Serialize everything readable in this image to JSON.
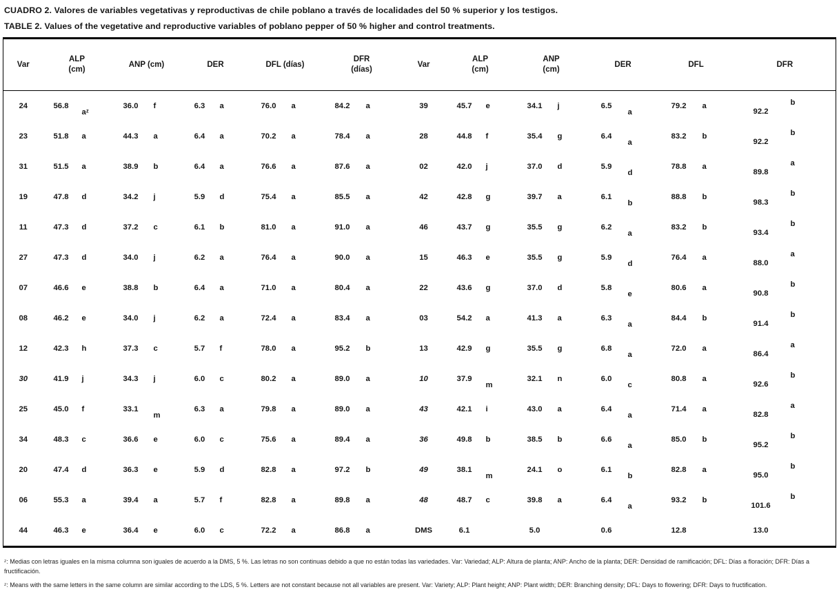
{
  "titles": {
    "es": "CUADRO 2. Valores de variables vegetativas y reproductivas de chile poblano a través de localidades del 50 % superior y los testigos.",
    "en": "TABLE 2. Values of the vegetative and reproductive variables of poblano pepper of 50 % higher and control treatments."
  },
  "table": {
    "headers_left": [
      {
        "l1": "Var"
      },
      {
        "l1": "ALP",
        "l2": "(cm)"
      },
      {
        "l1": "ANP (cm)"
      },
      {
        "l1": "DER"
      },
      {
        "l1": "DFL (días)"
      },
      {
        "l1": "DFR",
        "l2": "(días)"
      }
    ],
    "headers_right": [
      {
        "l1": "Var"
      },
      {
        "l1": "ALP",
        "l2": "(cm)"
      },
      {
        "l1": "ANP",
        "l2": "(cm)"
      },
      {
        "l1": "DER"
      },
      {
        "l1": "DFL"
      },
      {
        "l1": "DFR"
      }
    ],
    "rows": [
      {
        "left": [
          "24",
          "56.8",
          "aᶻ",
          "36.0",
          "f",
          "6.3",
          "a",
          "76.0",
          "a",
          "84.2",
          "a"
        ],
        "left_italic": false,
        "right": [
          "39",
          "45.7",
          "e",
          "34.1",
          "j",
          "6.5",
          "a",
          "79.2",
          "a",
          "92.2",
          "b"
        ],
        "right_italic": false
      },
      {
        "left": [
          "23",
          "51.8",
          "a",
          "44.3",
          "a",
          "6.4",
          "a",
          "70.2",
          "a",
          "78.4",
          "a"
        ],
        "left_italic": false,
        "right": [
          "28",
          "44.8",
          "f",
          "35.4",
          "g",
          "6.4",
          "a",
          "83.2",
          "b",
          "92.2",
          "b"
        ],
        "right_italic": false
      },
      {
        "left": [
          "31",
          "51.5",
          "a",
          "38.9",
          "b",
          "6.4",
          "a",
          "76.6",
          "a",
          "87.6",
          "a"
        ],
        "left_italic": false,
        "right": [
          "02",
          "42.0",
          "j",
          "37.0",
          "d",
          "5.9",
          "d",
          "78.8",
          "a",
          "89.8",
          "a"
        ],
        "right_italic": false
      },
      {
        "left": [
          "19",
          "47.8",
          "d",
          "34.2",
          "j",
          "5.9",
          "d",
          "75.4",
          "a",
          "85.5",
          "a"
        ],
        "left_italic": false,
        "right": [
          "42",
          "42.8",
          "g",
          "39.7",
          "a",
          "6.1",
          "b",
          "88.8",
          "b",
          "98.3",
          "b"
        ],
        "right_italic": false
      },
      {
        "left": [
          "11",
          "47.3",
          "d",
          "37.2",
          "c",
          "6.1",
          "b",
          "81.0",
          "a",
          "91.0",
          "a"
        ],
        "left_italic": false,
        "right": [
          "46",
          "43.7",
          "g",
          "35.5",
          "g",
          "6.2",
          "a",
          "83.2",
          "b",
          "93.4",
          "b"
        ],
        "right_italic": false
      },
      {
        "left": [
          "27",
          "47.3",
          "d",
          "34.0",
          "j",
          "6.2",
          "a",
          "76.4",
          "a",
          "90.0",
          "a"
        ],
        "left_italic": false,
        "right": [
          "15",
          "46.3",
          "e",
          "35.5",
          "g",
          "5.9",
          "d",
          "76.4",
          "a",
          "88.0",
          "a"
        ],
        "right_italic": false
      },
      {
        "left": [
          "07",
          "46.6",
          "e",
          "38.8",
          "b",
          "6.4",
          "a",
          "71.0",
          "a",
          "80.4",
          "a"
        ],
        "left_italic": false,
        "right": [
          "22",
          "43.6",
          "g",
          "37.0",
          "d",
          "5.8",
          "e",
          "80.6",
          "a",
          "90.8",
          "b"
        ],
        "right_italic": false
      },
      {
        "left": [
          "08",
          "46.2",
          "e",
          "34.0",
          "j",
          "6.2",
          "a",
          "72.4",
          "a",
          "83.4",
          "a"
        ],
        "left_italic": false,
        "right": [
          "03",
          "54.2",
          "a",
          "41.3",
          "a",
          "6.3",
          "a",
          "84.4",
          "b",
          "91.4",
          "b"
        ],
        "right_italic": false
      },
      {
        "left": [
          "12",
          "42.3",
          "h",
          "37.3",
          "c",
          "5.7",
          "f",
          "78.0",
          "a",
          "95.2",
          "b"
        ],
        "left_italic": false,
        "right": [
          "13",
          "42.9",
          "g",
          "35.5",
          "g",
          "6.8",
          "a",
          "72.0",
          "a",
          "86.4",
          "a"
        ],
        "right_italic": false
      },
      {
        "left": [
          "30",
          "41.9",
          "j",
          "34.3",
          "j",
          "6.0",
          "c",
          "80.2",
          "a",
          "89.0",
          "a"
        ],
        "left_italic": true,
        "right": [
          "10",
          "37.9",
          "m",
          "32.1",
          "n",
          "6.0",
          "c",
          "80.8",
          "a",
          "92.6",
          "b"
        ],
        "right_italic": true
      },
      {
        "left": [
          "25",
          "45.0",
          "f",
          "33.1",
          "m",
          "6.3",
          "a",
          "79.8",
          "a",
          "89.0",
          "a"
        ],
        "left_italic": false,
        "right": [
          "43",
          "42.1",
          "i",
          "43.0",
          "a",
          "6.4",
          "a",
          "71.4",
          "a",
          "82.8",
          "a"
        ],
        "right_italic": true
      },
      {
        "left": [
          "34",
          "48.3",
          "c",
          "36.6",
          "e",
          "6.0",
          "c",
          "75.6",
          "a",
          "89.4",
          "a"
        ],
        "left_italic": false,
        "right": [
          "36",
          "49.8",
          "b",
          "38.5",
          "b",
          "6.6",
          "a",
          "85.0",
          "b",
          "95.2",
          "b"
        ],
        "right_italic": true
      },
      {
        "left": [
          "20",
          "47.4",
          "d",
          "36.3",
          "e",
          "5.9",
          "d",
          "82.8",
          "a",
          "97.2",
          "b"
        ],
        "left_italic": false,
        "right": [
          "49",
          "38.1",
          "m",
          "24.1",
          "o",
          "6.1",
          "b",
          "82.8",
          "a",
          "95.0",
          "b"
        ],
        "right_italic": true
      },
      {
        "left": [
          "06",
          "55.3",
          "a",
          "39.4",
          "a",
          "5.7",
          "f",
          "82.8",
          "a",
          "89.8",
          "a"
        ],
        "left_italic": false,
        "right": [
          "48",
          "48.7",
          "c",
          "39.8",
          "a",
          "6.4",
          "a",
          "93.2",
          "b",
          "101.6",
          "b"
        ],
        "right_italic": true
      },
      {
        "left": [
          "44",
          "46.3",
          "e",
          "36.4",
          "e",
          "6.0",
          "c",
          "72.2",
          "a",
          "86.8",
          "a"
        ],
        "left_italic": false,
        "right": [
          "DMS",
          "6.1",
          "",
          "5.0",
          "",
          "0.6",
          "",
          "12.8",
          "",
          "13.0",
          ""
        ],
        "right_italic": false
      }
    ]
  },
  "footnotes": {
    "es": "ᶻ: Medias con letras iguales en la misma columna son iguales de acuerdo a la DMS, 5 %. Las letras no son continuas debido a que no están todas las variedades. Var: Variedad;  ALP: Altura de planta; ANP: Ancho de la planta; DER: Densidad de ramificación; DFL: Días a floración; DFR: Días a fructificación.",
    "en": "ᶻ: Means with the same letters in the same column are similar according to the LDS, 5 %. Letters are not constant because not all variables are present. Var: Variety; ALP: Plant height; ANP: Plant width; DER: Branching density; DFL: Days to flowering; DFR: Days to fructification."
  }
}
